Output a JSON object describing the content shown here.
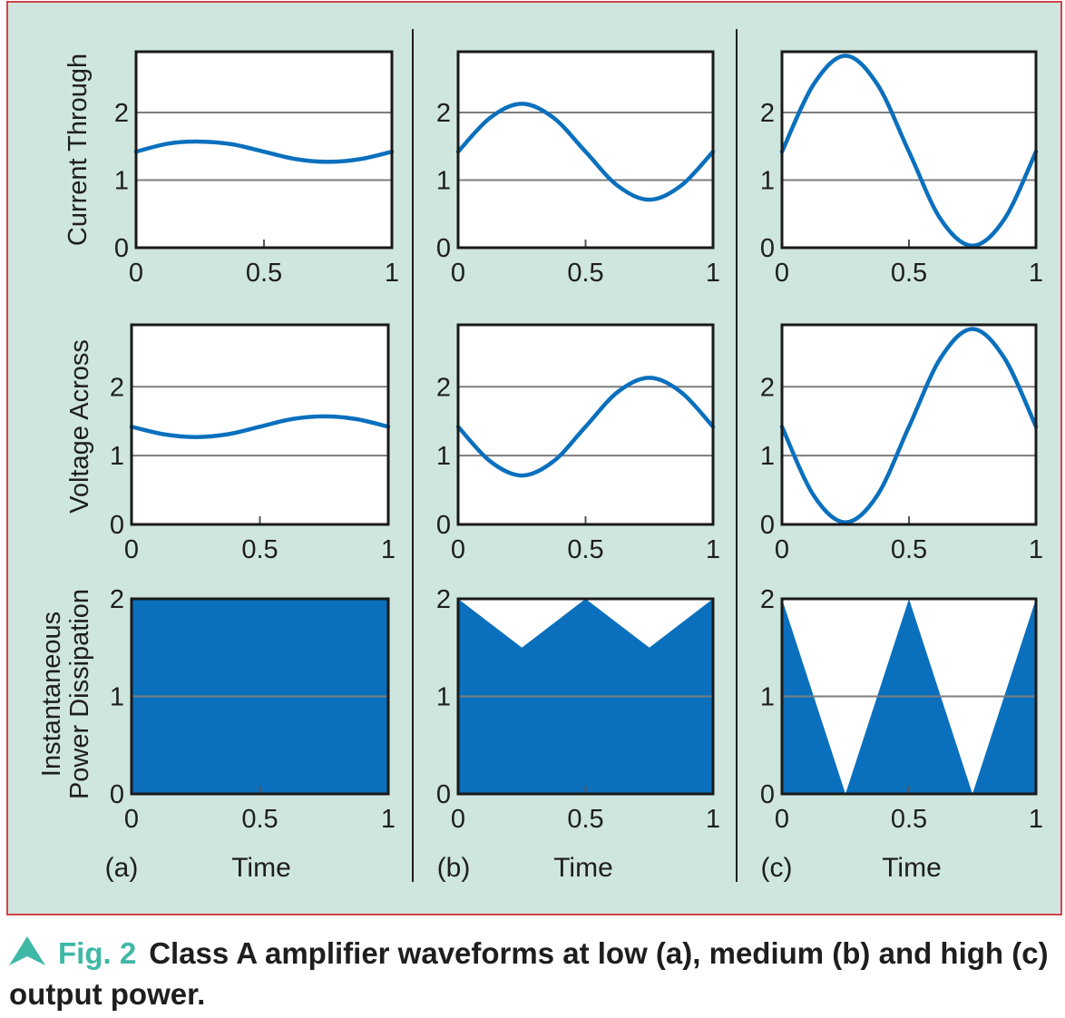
{
  "figure": {
    "border_color": "#d3434a",
    "background_color": "#cfe6df",
    "line_color": "#0a70bd",
    "fill_color": "#0a70bd",
    "grid_color": "#7d7d7d",
    "columns": [
      {
        "label": "(a)",
        "xlabel": "Time"
      },
      {
        "label": "(b)",
        "xlabel": "Time"
      },
      {
        "label": "(c)",
        "xlabel": "Time"
      }
    ],
    "row_ylabels": [
      [
        "Current Through"
      ],
      [
        "Voltage Across"
      ],
      [
        "Instantaneous",
        "Power Dissipation"
      ]
    ]
  },
  "caption": {
    "arrow_icon": "triangle-arrow-icon",
    "fig_label": "Fig. 2",
    "text": "Class A amplifier waveforms at low (a), medium (b) and high (c) output power."
  },
  "chart_data": [
    {
      "type": "line",
      "id": "current-a",
      "xlabel": "",
      "ylabel": "Current Through",
      "xlim": [
        0,
        1
      ],
      "ylim": [
        0,
        2.9
      ],
      "xticks": [
        0,
        0.5,
        1
      ],
      "yticks": [
        0,
        1,
        2
      ],
      "grid": "horizontal",
      "series": [
        {
          "x": [
            0,
            0.125,
            0.25,
            0.375,
            0.5,
            0.625,
            0.75,
            0.875,
            1
          ],
          "y": [
            1.42,
            1.54,
            1.57,
            1.53,
            1.42,
            1.31,
            1.27,
            1.31,
            1.42
          ]
        }
      ]
    },
    {
      "type": "line",
      "id": "current-b",
      "xlabel": "",
      "ylabel": "",
      "xlim": [
        0,
        1
      ],
      "ylim": [
        0,
        2.9
      ],
      "xticks": [
        0,
        0.5,
        1
      ],
      "yticks": [
        0,
        1,
        2
      ],
      "grid": "horizontal",
      "series": [
        {
          "x": [
            0,
            0.125,
            0.25,
            0.375,
            0.5,
            0.625,
            0.75,
            0.875,
            1
          ],
          "y": [
            1.42,
            1.92,
            2.13,
            1.92,
            1.42,
            0.92,
            0.71,
            0.92,
            1.42
          ]
        }
      ]
    },
    {
      "type": "line",
      "id": "current-c",
      "xlabel": "",
      "ylabel": "",
      "xlim": [
        0,
        1
      ],
      "ylim": [
        0,
        2.9
      ],
      "xticks": [
        0,
        0.5,
        1
      ],
      "yticks": [
        0,
        1,
        2
      ],
      "grid": "horizontal",
      "series": [
        {
          "x": [
            0,
            0.125,
            0.25,
            0.375,
            0.5,
            0.625,
            0.75,
            0.875,
            1
          ],
          "y": [
            1.42,
            2.42,
            2.84,
            2.42,
            1.42,
            0.42,
            0.03,
            0.42,
            1.42
          ]
        }
      ]
    },
    {
      "type": "line",
      "id": "voltage-a",
      "xlabel": "",
      "ylabel": "Voltage Across",
      "xlim": [
        0,
        1
      ],
      "ylim": [
        0,
        2.9
      ],
      "xticks": [
        0,
        0.5,
        1
      ],
      "yticks": [
        0,
        1,
        2
      ],
      "grid": "horizontal",
      "series": [
        {
          "x": [
            0,
            0.125,
            0.25,
            0.375,
            0.5,
            0.625,
            0.75,
            0.875,
            1
          ],
          "y": [
            1.42,
            1.31,
            1.27,
            1.31,
            1.42,
            1.53,
            1.57,
            1.53,
            1.42
          ]
        }
      ]
    },
    {
      "type": "line",
      "id": "voltage-b",
      "xlabel": "",
      "ylabel": "",
      "xlim": [
        0,
        1
      ],
      "ylim": [
        0,
        2.9
      ],
      "xticks": [
        0,
        0.5,
        1
      ],
      "yticks": [
        0,
        1,
        2
      ],
      "grid": "horizontal",
      "series": [
        {
          "x": [
            0,
            0.125,
            0.25,
            0.375,
            0.5,
            0.625,
            0.75,
            0.875,
            1
          ],
          "y": [
            1.42,
            0.92,
            0.71,
            0.92,
            1.42,
            1.92,
            2.13,
            1.92,
            1.42
          ]
        }
      ]
    },
    {
      "type": "line",
      "id": "voltage-c",
      "xlabel": "",
      "ylabel": "",
      "xlim": [
        0,
        1
      ],
      "ylim": [
        0,
        2.9
      ],
      "xticks": [
        0,
        0.5,
        1
      ],
      "yticks": [
        0,
        1,
        2
      ],
      "grid": "horizontal",
      "series": [
        {
          "x": [
            0,
            0.125,
            0.25,
            0.375,
            0.5,
            0.625,
            0.75,
            0.875,
            1
          ],
          "y": [
            1.42,
            0.42,
            0.03,
            0.42,
            1.42,
            2.42,
            2.84,
            2.42,
            1.42
          ]
        }
      ]
    },
    {
      "type": "area",
      "id": "power-a",
      "xlabel": "Time",
      "ylabel": "Instantaneous Power Dissipation",
      "xlim": [
        0,
        1
      ],
      "ylim": [
        0,
        2
      ],
      "xticks": [
        0,
        0.5,
        1
      ],
      "yticks": [
        0,
        1,
        2
      ],
      "grid": "horizontal",
      "series": [
        {
          "x": [
            0,
            0.125,
            0.25,
            0.375,
            0.5,
            0.625,
            0.75,
            0.875,
            1
          ],
          "y": [
            2,
            2,
            2,
            2,
            2,
            2,
            2,
            2,
            2
          ]
        }
      ]
    },
    {
      "type": "area",
      "id": "power-b",
      "xlabel": "Time",
      "ylabel": "",
      "xlim": [
        0,
        1
      ],
      "ylim": [
        0,
        2
      ],
      "xticks": [
        0,
        0.5,
        1
      ],
      "yticks": [
        0,
        1,
        2
      ],
      "grid": "horizontal",
      "series": [
        {
          "x": [
            0,
            0.125,
            0.25,
            0.375,
            0.5,
            0.625,
            0.75,
            0.875,
            1
          ],
          "y": [
            2,
            1.75,
            1.5,
            1.75,
            2,
            1.75,
            1.5,
            1.75,
            2
          ]
        }
      ]
    },
    {
      "type": "area",
      "id": "power-c",
      "xlabel": "Time",
      "ylabel": "",
      "xlim": [
        0,
        1
      ],
      "ylim": [
        0,
        2
      ],
      "xticks": [
        0,
        0.5,
        1
      ],
      "yticks": [
        0,
        1,
        2
      ],
      "grid": "horizontal",
      "series": [
        {
          "x": [
            0,
            0.125,
            0.25,
            0.375,
            0.5,
            0.625,
            0.75,
            0.875,
            1
          ],
          "y": [
            2,
            1,
            0,
            1,
            2,
            1,
            0,
            1,
            2
          ]
        }
      ]
    }
  ]
}
